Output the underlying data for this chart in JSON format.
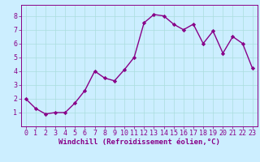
{
  "x": [
    0,
    1,
    2,
    3,
    4,
    5,
    6,
    7,
    8,
    9,
    10,
    11,
    12,
    13,
    14,
    15,
    16,
    17,
    18,
    19,
    20,
    21,
    22,
    23
  ],
  "y": [
    2.0,
    1.3,
    0.9,
    1.0,
    1.0,
    1.7,
    2.6,
    4.0,
    3.5,
    3.3,
    4.1,
    5.0,
    7.5,
    8.1,
    8.0,
    7.4,
    7.0,
    7.4,
    6.0,
    6.9,
    5.3,
    6.5,
    6.0,
    4.2
  ],
  "line_color": "#880088",
  "marker": "D",
  "marker_size": 2.2,
  "line_width": 1.0,
  "xlabel": "Windchill (Refroidissement éolien,°C)",
  "xlim_min": -0.5,
  "xlim_max": 23.5,
  "ylim_min": 0,
  "ylim_max": 8.8,
  "yticks": [
    1,
    2,
    3,
    4,
    5,
    6,
    7,
    8
  ],
  "xticks": [
    0,
    1,
    2,
    3,
    4,
    5,
    6,
    7,
    8,
    9,
    10,
    11,
    12,
    13,
    14,
    15,
    16,
    17,
    18,
    19,
    20,
    21,
    22,
    23
  ],
  "grid_color": "#aadddd",
  "background_color": "#cceeff",
  "xlabel_fontsize": 6.5,
  "tick_fontsize": 6.0,
  "line_color_spine": "#880088",
  "grid_lw": 0.5
}
